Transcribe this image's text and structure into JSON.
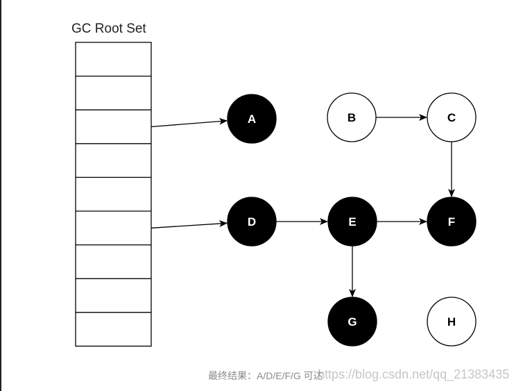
{
  "title": "GC Root Set",
  "root_set": {
    "slot_count": 9
  },
  "nodes": [
    {
      "id": "A",
      "label": "A",
      "reachable": true
    },
    {
      "id": "B",
      "label": "B",
      "reachable": false
    },
    {
      "id": "C",
      "label": "C",
      "reachable": false
    },
    {
      "id": "D",
      "label": "D",
      "reachable": true
    },
    {
      "id": "E",
      "label": "E",
      "reachable": true
    },
    {
      "id": "F",
      "label": "F",
      "reachable": true
    },
    {
      "id": "G",
      "label": "G",
      "reachable": true
    },
    {
      "id": "H",
      "label": "H",
      "reachable": false
    }
  ],
  "edges": [
    {
      "from": "root-slot-2",
      "to": "A"
    },
    {
      "from": "root-slot-5",
      "to": "D"
    },
    {
      "from": "B",
      "to": "C"
    },
    {
      "from": "C",
      "to": "F"
    },
    {
      "from": "D",
      "to": "E"
    },
    {
      "from": "E",
      "to": "F"
    },
    {
      "from": "E",
      "to": "G"
    }
  ],
  "caption": "最终结果：A/D/E/F/G 可达",
  "watermark": "https://blog.csdn.net/qq_21383435",
  "colors": {
    "reachable_fill": "#000000",
    "unreachable_fill": "#ffffff",
    "stroke": "#000000"
  }
}
